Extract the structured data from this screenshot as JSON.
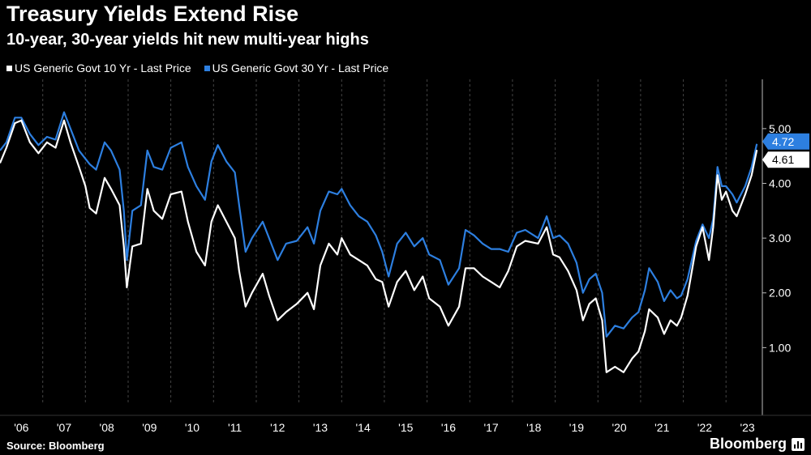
{
  "header": {
    "title": "Treasury Yields Extend Rise",
    "subtitle": "10-year, 30-year yields hit new multi-year highs"
  },
  "footer": {
    "source": "Source: Bloomberg",
    "brand": "Bloomberg"
  },
  "colors": {
    "background": "#000000",
    "series_10y": "#ffffff",
    "series_30y": "#2d7fe0",
    "grid": "#444444"
  },
  "chart_data": {
    "type": "line",
    "title": "Treasury Yields Extend Rise",
    "subtitle": "10-year, 30-year yields hit new multi-year highs",
    "xlabel": "",
    "ylabel": "",
    "x_range": [
      2006.0,
      2023.85
    ],
    "ylim": [
      0.0,
      5.9
    ],
    "y_ticks": [
      1,
      2,
      3,
      4,
      5
    ],
    "y_tick_labels": [
      "1.00",
      "2.00",
      "3.00",
      "4.00",
      "5.00"
    ],
    "x_ticks": [
      2006,
      2007,
      2008,
      2009,
      2010,
      2011,
      2012,
      2013,
      2014,
      2015,
      2016,
      2017,
      2018,
      2019,
      2020,
      2021,
      2022,
      2023
    ],
    "x_tick_labels": [
      "'06",
      "'07",
      "'08",
      "'09",
      "'10",
      "'11",
      "'12",
      "'13",
      "'14",
      "'15",
      "'16",
      "'17",
      "'18",
      "'19",
      "'20",
      "'21",
      "'22",
      "'23"
    ],
    "grid": "vertical dashed",
    "legend_position": "top-left",
    "series": [
      {
        "name": "US Generic Govt 10 Yr - Last Price",
        "color": "#ffffff",
        "last_value_label": "4.61",
        "points": [
          [
            2006.0,
            4.37
          ],
          [
            2006.15,
            4.65
          ],
          [
            2006.35,
            5.1
          ],
          [
            2006.5,
            5.15
          ],
          [
            2006.7,
            4.75
          ],
          [
            2006.9,
            4.55
          ],
          [
            2007.1,
            4.75
          ],
          [
            2007.3,
            4.65
          ],
          [
            2007.5,
            5.15
          ],
          [
            2007.65,
            4.75
          ],
          [
            2007.85,
            4.3
          ],
          [
            2008.0,
            3.95
          ],
          [
            2008.1,
            3.55
          ],
          [
            2008.25,
            3.45
          ],
          [
            2008.45,
            4.1
          ],
          [
            2008.6,
            3.9
          ],
          [
            2008.8,
            3.6
          ],
          [
            2008.9,
            2.85
          ],
          [
            2008.97,
            2.1
          ],
          [
            2009.1,
            2.85
          ],
          [
            2009.3,
            2.9
          ],
          [
            2009.45,
            3.9
          ],
          [
            2009.6,
            3.5
          ],
          [
            2009.8,
            3.35
          ],
          [
            2010.0,
            3.8
          ],
          [
            2010.25,
            3.85
          ],
          [
            2010.4,
            3.3
          ],
          [
            2010.6,
            2.75
          ],
          [
            2010.8,
            2.5
          ],
          [
            2010.95,
            3.3
          ],
          [
            2011.1,
            3.6
          ],
          [
            2011.3,
            3.3
          ],
          [
            2011.5,
            3.0
          ],
          [
            2011.6,
            2.4
          ],
          [
            2011.75,
            1.75
          ],
          [
            2011.9,
            2.0
          ],
          [
            2012.15,
            2.35
          ],
          [
            2012.3,
            1.95
          ],
          [
            2012.5,
            1.5
          ],
          [
            2012.7,
            1.65
          ],
          [
            2012.95,
            1.8
          ],
          [
            2013.2,
            2.0
          ],
          [
            2013.35,
            1.7
          ],
          [
            2013.5,
            2.5
          ],
          [
            2013.7,
            2.9
          ],
          [
            2013.9,
            2.7
          ],
          [
            2014.0,
            3.0
          ],
          [
            2014.2,
            2.7
          ],
          [
            2014.4,
            2.6
          ],
          [
            2014.6,
            2.5
          ],
          [
            2014.8,
            2.25
          ],
          [
            2014.95,
            2.2
          ],
          [
            2015.1,
            1.75
          ],
          [
            2015.3,
            2.2
          ],
          [
            2015.5,
            2.4
          ],
          [
            2015.7,
            2.05
          ],
          [
            2015.9,
            2.3
          ],
          [
            2016.05,
            1.9
          ],
          [
            2016.3,
            1.75
          ],
          [
            2016.5,
            1.4
          ],
          [
            2016.75,
            1.75
          ],
          [
            2016.9,
            2.45
          ],
          [
            2017.1,
            2.45
          ],
          [
            2017.3,
            2.3
          ],
          [
            2017.5,
            2.2
          ],
          [
            2017.7,
            2.1
          ],
          [
            2017.9,
            2.4
          ],
          [
            2018.1,
            2.85
          ],
          [
            2018.3,
            2.95
          ],
          [
            2018.6,
            2.9
          ],
          [
            2018.8,
            3.2
          ],
          [
            2018.95,
            2.7
          ],
          [
            2019.1,
            2.65
          ],
          [
            2019.3,
            2.4
          ],
          [
            2019.5,
            2.05
          ],
          [
            2019.65,
            1.5
          ],
          [
            2019.8,
            1.8
          ],
          [
            2019.95,
            1.9
          ],
          [
            2020.1,
            1.5
          ],
          [
            2020.2,
            0.55
          ],
          [
            2020.4,
            0.65
          ],
          [
            2020.6,
            0.55
          ],
          [
            2020.8,
            0.8
          ],
          [
            2020.95,
            0.93
          ],
          [
            2021.1,
            1.3
          ],
          [
            2021.2,
            1.7
          ],
          [
            2021.4,
            1.55
          ],
          [
            2021.55,
            1.25
          ],
          [
            2021.7,
            1.5
          ],
          [
            2021.85,
            1.4
          ],
          [
            2021.95,
            1.55
          ],
          [
            2022.1,
            1.95
          ],
          [
            2022.3,
            2.85
          ],
          [
            2022.45,
            3.2
          ],
          [
            2022.6,
            2.6
          ],
          [
            2022.7,
            3.2
          ],
          [
            2022.8,
            4.15
          ],
          [
            2022.9,
            3.7
          ],
          [
            2023.0,
            3.85
          ],
          [
            2023.15,
            3.5
          ],
          [
            2023.25,
            3.4
          ],
          [
            2023.45,
            3.8
          ],
          [
            2023.6,
            4.15
          ],
          [
            2023.72,
            4.61
          ]
        ]
      },
      {
        "name": "US Generic Govt 30 Yr - Last Price",
        "color": "#2d7fe0",
        "last_value_label": "4.72",
        "points": [
          [
            2006.0,
            4.6
          ],
          [
            2006.15,
            4.75
          ],
          [
            2006.35,
            5.2
          ],
          [
            2006.5,
            5.2
          ],
          [
            2006.7,
            4.9
          ],
          [
            2006.9,
            4.7
          ],
          [
            2007.1,
            4.85
          ],
          [
            2007.3,
            4.8
          ],
          [
            2007.5,
            5.3
          ],
          [
            2007.65,
            5.0
          ],
          [
            2007.85,
            4.6
          ],
          [
            2008.0,
            4.45
          ],
          [
            2008.1,
            4.35
          ],
          [
            2008.25,
            4.25
          ],
          [
            2008.45,
            4.75
          ],
          [
            2008.6,
            4.6
          ],
          [
            2008.8,
            4.25
          ],
          [
            2008.9,
            3.5
          ],
          [
            2008.97,
            2.6
          ],
          [
            2009.1,
            3.5
          ],
          [
            2009.3,
            3.6
          ],
          [
            2009.45,
            4.6
          ],
          [
            2009.6,
            4.3
          ],
          [
            2009.8,
            4.25
          ],
          [
            2010.0,
            4.65
          ],
          [
            2010.25,
            4.75
          ],
          [
            2010.4,
            4.3
          ],
          [
            2010.6,
            3.95
          ],
          [
            2010.8,
            3.7
          ],
          [
            2010.95,
            4.4
          ],
          [
            2011.1,
            4.7
          ],
          [
            2011.3,
            4.4
          ],
          [
            2011.5,
            4.2
          ],
          [
            2011.6,
            3.6
          ],
          [
            2011.75,
            2.75
          ],
          [
            2011.9,
            3.0
          ],
          [
            2012.15,
            3.3
          ],
          [
            2012.3,
            3.0
          ],
          [
            2012.5,
            2.6
          ],
          [
            2012.7,
            2.9
          ],
          [
            2012.95,
            2.95
          ],
          [
            2013.2,
            3.2
          ],
          [
            2013.35,
            2.9
          ],
          [
            2013.5,
            3.5
          ],
          [
            2013.7,
            3.85
          ],
          [
            2013.9,
            3.8
          ],
          [
            2014.0,
            3.9
          ],
          [
            2014.2,
            3.6
          ],
          [
            2014.4,
            3.4
          ],
          [
            2014.6,
            3.3
          ],
          [
            2014.8,
            3.05
          ],
          [
            2014.95,
            2.75
          ],
          [
            2015.1,
            2.3
          ],
          [
            2015.3,
            2.9
          ],
          [
            2015.5,
            3.1
          ],
          [
            2015.7,
            2.85
          ],
          [
            2015.9,
            3.0
          ],
          [
            2016.05,
            2.7
          ],
          [
            2016.3,
            2.6
          ],
          [
            2016.5,
            2.15
          ],
          [
            2016.75,
            2.45
          ],
          [
            2016.9,
            3.15
          ],
          [
            2017.1,
            3.05
          ],
          [
            2017.3,
            2.9
          ],
          [
            2017.5,
            2.8
          ],
          [
            2017.7,
            2.8
          ],
          [
            2017.9,
            2.75
          ],
          [
            2018.1,
            3.1
          ],
          [
            2018.3,
            3.15
          ],
          [
            2018.6,
            3.0
          ],
          [
            2018.8,
            3.4
          ],
          [
            2018.95,
            3.0
          ],
          [
            2019.1,
            3.05
          ],
          [
            2019.3,
            2.9
          ],
          [
            2019.5,
            2.55
          ],
          [
            2019.65,
            2.0
          ],
          [
            2019.8,
            2.25
          ],
          [
            2019.95,
            2.35
          ],
          [
            2020.1,
            2.0
          ],
          [
            2020.2,
            1.2
          ],
          [
            2020.4,
            1.4
          ],
          [
            2020.6,
            1.35
          ],
          [
            2020.8,
            1.55
          ],
          [
            2020.95,
            1.65
          ],
          [
            2021.1,
            2.05
          ],
          [
            2021.2,
            2.45
          ],
          [
            2021.4,
            2.2
          ],
          [
            2021.55,
            1.85
          ],
          [
            2021.7,
            2.05
          ],
          [
            2021.85,
            1.9
          ],
          [
            2021.95,
            1.95
          ],
          [
            2022.1,
            2.25
          ],
          [
            2022.3,
            2.95
          ],
          [
            2022.45,
            3.25
          ],
          [
            2022.6,
            3.0
          ],
          [
            2022.7,
            3.35
          ],
          [
            2022.8,
            4.3
          ],
          [
            2022.9,
            3.95
          ],
          [
            2023.0,
            3.95
          ],
          [
            2023.15,
            3.8
          ],
          [
            2023.25,
            3.65
          ],
          [
            2023.45,
            3.95
          ],
          [
            2023.6,
            4.3
          ],
          [
            2023.72,
            4.72
          ]
        ]
      }
    ]
  }
}
